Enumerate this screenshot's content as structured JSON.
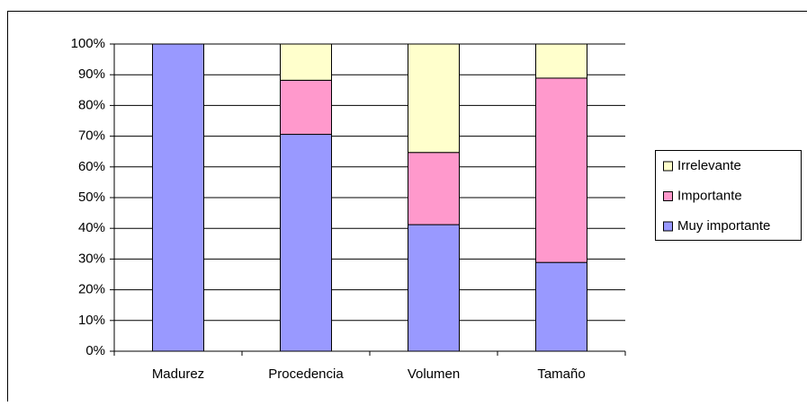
{
  "chart_data": {
    "type": "stacked_bar",
    "categories": [
      "Madurez",
      "Procedencia",
      "Volumen",
      "Tamaño"
    ],
    "series": [
      {
        "name": "Muy importante",
        "color": "#9999ff",
        "values": [
          100,
          70.6,
          41.2,
          28.9
        ]
      },
      {
        "name": "Importante",
        "color": "#ff99cc",
        "values": [
          0,
          17.6,
          23.5,
          60.0
        ]
      },
      {
        "name": "Irrelevante",
        "color": "#ffffcc",
        "values": [
          0,
          11.8,
          35.3,
          11.1
        ]
      }
    ],
    "ylim": [
      0,
      100
    ],
    "yticks": [
      {
        "value": 0,
        "label": "0%"
      },
      {
        "value": 10,
        "label": "10%"
      },
      {
        "value": 20,
        "label": "20%"
      },
      {
        "value": 30,
        "label": "30%"
      },
      {
        "value": 40,
        "label": "40%"
      },
      {
        "value": 50,
        "label": "50%"
      },
      {
        "value": 60,
        "label": "60%"
      },
      {
        "value": 70,
        "label": "70%"
      },
      {
        "value": 80,
        "label": "80%"
      },
      {
        "value": 90,
        "label": "90%"
      },
      {
        "value": 100,
        "label": "100%"
      }
    ],
    "grid": true,
    "legend": "right"
  }
}
